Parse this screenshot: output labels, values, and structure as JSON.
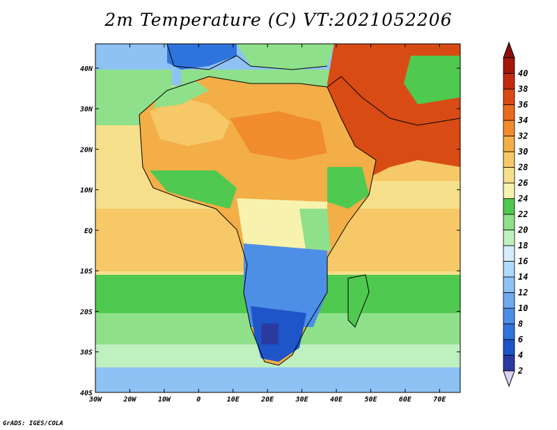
{
  "title": "2m Temperature (C) VT:2021052206",
  "credit": "GrADS: IGES/COLA",
  "map": {
    "lon_range": [
      -30,
      76
    ],
    "lat_range": [
      -40,
      46
    ],
    "x_ticks": [
      "30W",
      "20W",
      "10W",
      "0",
      "10E",
      "20E",
      "30E",
      "40E",
      "50E",
      "60E",
      "70E"
    ],
    "y_ticks": [
      "40N",
      "30N",
      "20N",
      "10N",
      "EQ",
      "10S",
      "20S",
      "30S",
      "40S"
    ]
  },
  "colorbar": {
    "levels": [
      "2",
      "4",
      "6",
      "8",
      "10",
      "12",
      "14",
      "16",
      "18",
      "20",
      "22",
      "24",
      "26",
      "28",
      "30",
      "32",
      "34",
      "36",
      "38",
      "40"
    ],
    "colors": [
      "#2a3aa0",
      "#1e55c8",
      "#2f74dc",
      "#4d8fe6",
      "#6fa9ee",
      "#8ec2f5",
      "#b0d8fa",
      "#d4ecfb",
      "#bff0bf",
      "#8fe08a",
      "#4fc94f",
      "#f7f3ae",
      "#f5df8a",
      "#f6c867",
      "#f3ae48",
      "#f08c2e",
      "#ea6b1f",
      "#d94b14",
      "#c42a10",
      "#a5170d"
    ],
    "under_color": "#dcd4f3",
    "over_color": "#8c0f0a"
  }
}
